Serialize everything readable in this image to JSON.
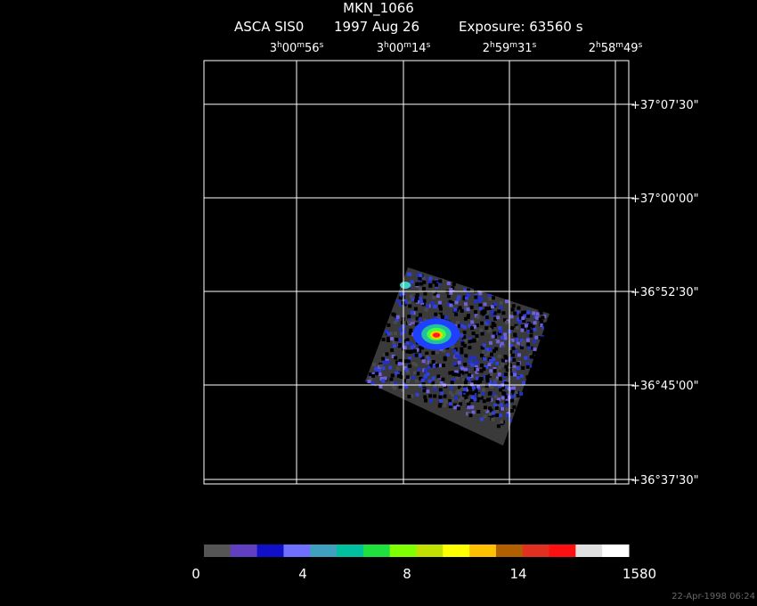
{
  "header": {
    "title": "MKN_1066",
    "instrument": "ASCA SIS0",
    "date": "1997 Aug 26",
    "exposure": "Exposure: 63560 s"
  },
  "ra_labels": [
    [
      "3",
      "h",
      "00",
      "m",
      "56",
      "s"
    ],
    [
      "3",
      "h",
      "00",
      "m",
      "14",
      "s"
    ],
    [
      "2",
      "h",
      "59",
      "m",
      "31",
      "s"
    ],
    [
      "2",
      "h",
      "58",
      "m",
      "49",
      "s"
    ]
  ],
  "dec_labels": [
    "+37°07'30\"",
    "+37°00'00\"",
    "+36°52'30\"",
    "+36°45'00\"",
    "+36°37'30\""
  ],
  "colorbar_labels": [
    "0",
    "4",
    "8",
    "14",
    "1580"
  ],
  "timestamp": "22-Apr-1998 06:24"
}
